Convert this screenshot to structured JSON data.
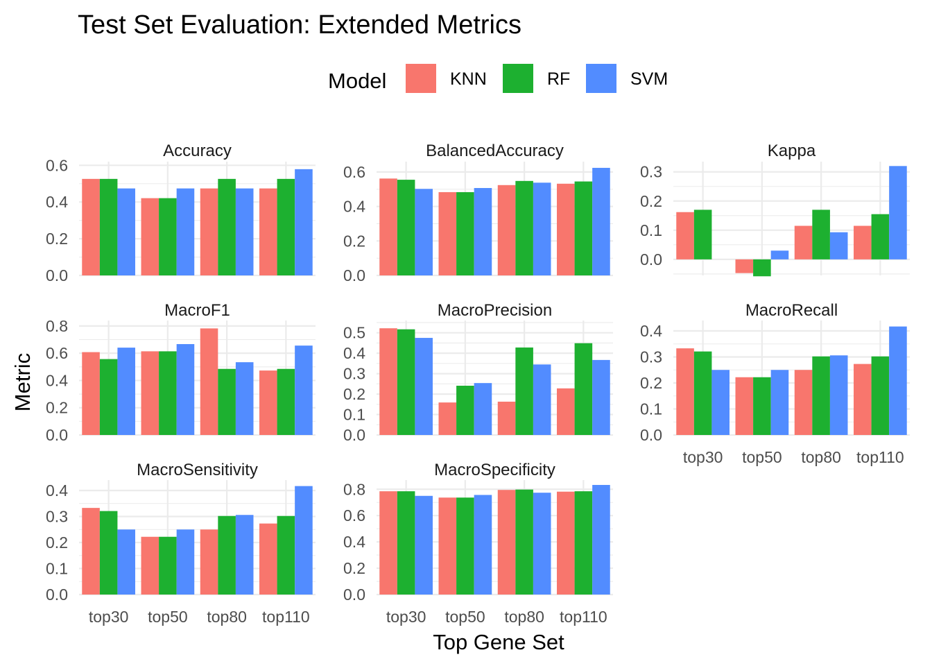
{
  "chart_data": {
    "type": "bar",
    "title": "Test Set Evaluation: Extended Metrics",
    "xlabel": "Top Gene Set",
    "ylabel": "Metric",
    "legend": {
      "title": "Model",
      "position": "top"
    },
    "categories": [
      "top30",
      "top50",
      "top80",
      "top110"
    ],
    "series_styles": [
      {
        "name": "KNN",
        "color": "#F8766D"
      },
      {
        "name": "RF",
        "color": "#1DB030"
      },
      {
        "name": "SVM",
        "color": "#528CFF"
      }
    ],
    "facet_scales": "free_y",
    "panels": [
      {
        "name": "Accuracy",
        "ylim": [
          0,
          0.62
        ],
        "yticks": [
          0.0,
          0.2,
          0.4,
          0.6
        ],
        "series": [
          {
            "name": "KNN",
            "values": [
              0.526,
              0.421,
              0.474,
              0.474
            ]
          },
          {
            "name": "RF",
            "values": [
              0.526,
              0.421,
              0.526,
              0.526
            ]
          },
          {
            "name": "SVM",
            "values": [
              0.474,
              0.474,
              0.474,
              0.579
            ]
          }
        ]
      },
      {
        "name": "BalancedAccuracy",
        "ylim": [
          0,
          0.66
        ],
        "yticks": [
          0.0,
          0.2,
          0.4,
          0.6
        ],
        "series": [
          {
            "name": "KNN",
            "values": [
              0.562,
              0.483,
              0.524,
              0.532
            ]
          },
          {
            "name": "RF",
            "values": [
              0.555,
              0.483,
              0.548,
              0.545
            ]
          },
          {
            "name": "SVM",
            "values": [
              0.502,
              0.507,
              0.538,
              0.624
            ]
          }
        ]
      },
      {
        "name": "Kappa",
        "ylim": [
          -0.055,
          0.335
        ],
        "yticks": [
          0.0,
          0.1,
          0.2,
          0.3
        ],
        "series": [
          {
            "name": "KNN",
            "values": [
              0.162,
              -0.047,
              0.115,
              0.115
            ]
          },
          {
            "name": "RF",
            "values": [
              0.17,
              -0.058,
              0.17,
              0.155
            ]
          },
          {
            "name": "SVM",
            "values": [
              0.0,
              0.03,
              0.093,
              0.32
            ]
          }
        ]
      },
      {
        "name": "MacroF1",
        "ylim": [
          0,
          0.84
        ],
        "yticks": [
          0.0,
          0.2,
          0.4,
          0.6,
          0.8
        ],
        "series": [
          {
            "name": "KNN",
            "values": [
              0.608,
              0.614,
              0.782,
              0.473
            ]
          },
          {
            "name": "RF",
            "values": [
              0.557,
              0.614,
              0.485,
              0.485
            ]
          },
          {
            "name": "SVM",
            "values": [
              0.641,
              0.667,
              0.534,
              0.656
            ]
          }
        ]
      },
      {
        "name": "MacroPrecision",
        "ylim": [
          0,
          0.56
        ],
        "yticks": [
          0.0,
          0.1,
          0.2,
          0.3,
          0.4,
          0.5
        ],
        "series": [
          {
            "name": "KNN",
            "values": [
              0.522,
              0.159,
              0.163,
              0.228
            ]
          },
          {
            "name": "RF",
            "values": [
              0.517,
              0.241,
              0.428,
              0.449
            ]
          },
          {
            "name": "SVM",
            "values": [
              0.475,
              0.254,
              0.345,
              0.367
            ]
          }
        ]
      },
      {
        "name": "MacroRecall",
        "ylim": [
          0,
          0.44
        ],
        "yticks": [
          0.0,
          0.1,
          0.2,
          0.3,
          0.4
        ],
        "series": [
          {
            "name": "KNN",
            "values": [
              0.333,
              0.222,
              0.25,
              0.273
            ]
          },
          {
            "name": "RF",
            "values": [
              0.321,
              0.222,
              0.302,
              0.302
            ]
          },
          {
            "name": "SVM",
            "values": [
              0.25,
              0.25,
              0.306,
              0.417
            ]
          }
        ]
      },
      {
        "name": "MacroSensitivity",
        "ylim": [
          0,
          0.44
        ],
        "yticks": [
          0.0,
          0.1,
          0.2,
          0.3,
          0.4
        ],
        "series": [
          {
            "name": "KNN",
            "values": [
              0.333,
              0.222,
              0.25,
              0.273
            ]
          },
          {
            "name": "RF",
            "values": [
              0.321,
              0.222,
              0.302,
              0.302
            ]
          },
          {
            "name": "SVM",
            "values": [
              0.25,
              0.25,
              0.306,
              0.417
            ]
          }
        ]
      },
      {
        "name": "MacroSpecificity",
        "ylim": [
          0,
          0.87
        ],
        "yticks": [
          0.0,
          0.2,
          0.4,
          0.6,
          0.8
        ],
        "series": [
          {
            "name": "KNN",
            "values": [
              0.785,
              0.737,
              0.795,
              0.782
            ]
          },
          {
            "name": "RF",
            "values": [
              0.785,
              0.737,
              0.798,
              0.785
            ]
          },
          {
            "name": "SVM",
            "values": [
              0.75,
              0.757,
              0.774,
              0.833
            ]
          }
        ]
      }
    ],
    "grid": true
  }
}
